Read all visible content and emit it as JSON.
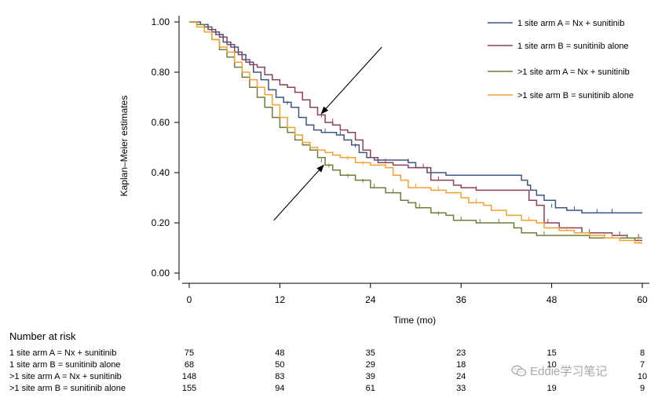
{
  "chart_data": {
    "type": "line",
    "step": true,
    "xlabel": "Time (mo)",
    "ylabel": "Kaplan–Meier estimates",
    "xlim": [
      0,
      60
    ],
    "ylim": [
      0,
      1.05
    ],
    "xticks": [
      0,
      12,
      24,
      36,
      48,
      60
    ],
    "yticks": [
      0.0,
      0.2,
      0.4,
      0.6,
      0.8,
      1.0
    ],
    "xtick_labels": [
      "0",
      "12",
      "24",
      "36",
      "48",
      "60"
    ],
    "ytick_labels": [
      "0.00",
      "0.20",
      "0.40",
      "0.60",
      "0.80",
      "1.00"
    ],
    "legend_position": "top-right",
    "series": [
      {
        "name": "1 site arm A = Nx + sunitinib",
        "color": "#3d5583",
        "points": [
          [
            0,
            1.0
          ],
          [
            1.5,
            0.99
          ],
          [
            2.5,
            0.97
          ],
          [
            3.5,
            0.95
          ],
          [
            4.5,
            0.92
          ],
          [
            5.5,
            0.9
          ],
          [
            6.5,
            0.87
          ],
          [
            7.5,
            0.84
          ],
          [
            8.5,
            0.8
          ],
          [
            9.5,
            0.77
          ],
          [
            10.5,
            0.73
          ],
          [
            11.5,
            0.7
          ],
          [
            12.5,
            0.68
          ],
          [
            13.5,
            0.66
          ],
          [
            14.5,
            0.62
          ],
          [
            15.5,
            0.59
          ],
          [
            16.5,
            0.57
          ],
          [
            17.5,
            0.56
          ],
          [
            18.5,
            0.56
          ],
          [
            19.5,
            0.55
          ],
          [
            20.5,
            0.53
          ],
          [
            21.5,
            0.51
          ],
          [
            22.5,
            0.48
          ],
          [
            23.5,
            0.46
          ],
          [
            24.5,
            0.45
          ],
          [
            27,
            0.45
          ],
          [
            29,
            0.44
          ],
          [
            30,
            0.42
          ],
          [
            31.5,
            0.4
          ],
          [
            34,
            0.39
          ],
          [
            43.5,
            0.39
          ],
          [
            44,
            0.37
          ],
          [
            44.8,
            0.35
          ],
          [
            45.2,
            0.33
          ],
          [
            46,
            0.31
          ],
          [
            47,
            0.29
          ],
          [
            48.5,
            0.26
          ],
          [
            50,
            0.25
          ],
          [
            52,
            0.24
          ],
          [
            60,
            0.24
          ]
        ],
        "censored": [
          [
            13,
            0.67
          ],
          [
            18,
            0.56
          ],
          [
            20,
            0.55
          ],
          [
            22,
            0.5
          ],
          [
            29,
            0.44
          ],
          [
            32,
            0.4
          ],
          [
            48,
            0.26
          ],
          [
            51,
            0.25
          ],
          [
            54,
            0.24
          ],
          [
            56,
            0.24
          ]
        ]
      },
      {
        "name": "1 site arm B = sunitinib alone",
        "color": "#8c4256",
        "points": [
          [
            0,
            1.0
          ],
          [
            1,
            0.99
          ],
          [
            2,
            0.98
          ],
          [
            3,
            0.96
          ],
          [
            4,
            0.94
          ],
          [
            5,
            0.91
          ],
          [
            6,
            0.88
          ],
          [
            7,
            0.85
          ],
          [
            8,
            0.83
          ],
          [
            9,
            0.82
          ],
          [
            10,
            0.79
          ],
          [
            11,
            0.77
          ],
          [
            12,
            0.75
          ],
          [
            13,
            0.74
          ],
          [
            14,
            0.72
          ],
          [
            15,
            0.69
          ],
          [
            16,
            0.66
          ],
          [
            17,
            0.63
          ],
          [
            18,
            0.6
          ],
          [
            19,
            0.59
          ],
          [
            20,
            0.57
          ],
          [
            21,
            0.56
          ],
          [
            22,
            0.53
          ],
          [
            23,
            0.49
          ],
          [
            24,
            0.46
          ],
          [
            25,
            0.44
          ],
          [
            27,
            0.43
          ],
          [
            29,
            0.42
          ],
          [
            32,
            0.37
          ],
          [
            34,
            0.37
          ],
          [
            35,
            0.35
          ],
          [
            36,
            0.34
          ],
          [
            37,
            0.34
          ],
          [
            38,
            0.33
          ],
          [
            43,
            0.33
          ],
          [
            45,
            0.29
          ],
          [
            46,
            0.27
          ],
          [
            47,
            0.2
          ],
          [
            49,
            0.18
          ],
          [
            52,
            0.16
          ],
          [
            56,
            0.15
          ],
          [
            58,
            0.14
          ],
          [
            59,
            0.13
          ],
          [
            60,
            0.13
          ]
        ],
        "censored": [
          [
            14,
            0.72
          ],
          [
            17.5,
            0.62
          ],
          [
            19,
            0.6
          ],
          [
            24,
            0.46
          ],
          [
            26,
            0.44
          ],
          [
            31,
            0.42
          ],
          [
            33,
            0.37
          ],
          [
            38,
            0.33
          ],
          [
            47.5,
            0.2
          ],
          [
            53,
            0.16
          ],
          [
            57,
            0.15
          ],
          [
            59.5,
            0.14
          ]
        ]
      },
      {
        "name": ">1 site arm A = Nx + sunitinib",
        "color": "#6b7f3a",
        "points": [
          [
            0,
            1.0
          ],
          [
            1,
            0.99
          ],
          [
            2,
            0.96
          ],
          [
            3,
            0.93
          ],
          [
            4,
            0.89
          ],
          [
            5,
            0.86
          ],
          [
            6,
            0.82
          ],
          [
            7,
            0.78
          ],
          [
            8,
            0.74
          ],
          [
            9,
            0.7
          ],
          [
            10,
            0.66
          ],
          [
            11,
            0.62
          ],
          [
            12,
            0.58
          ],
          [
            13,
            0.56
          ],
          [
            14,
            0.53
          ],
          [
            15,
            0.51
          ],
          [
            16,
            0.49
          ],
          [
            17,
            0.46
          ],
          [
            18,
            0.43
          ],
          [
            19,
            0.41
          ],
          [
            20,
            0.39
          ],
          [
            22,
            0.37
          ],
          [
            24,
            0.34
          ],
          [
            26,
            0.32
          ],
          [
            28,
            0.29
          ],
          [
            29,
            0.28
          ],
          [
            30,
            0.26
          ],
          [
            32,
            0.24
          ],
          [
            34,
            0.23
          ],
          [
            35,
            0.21
          ],
          [
            38,
            0.2
          ],
          [
            42,
            0.2
          ],
          [
            43,
            0.18
          ],
          [
            44,
            0.16
          ],
          [
            46,
            0.15
          ],
          [
            52,
            0.15
          ],
          [
            53,
            0.14
          ],
          [
            60,
            0.14
          ]
        ],
        "censored": [
          [
            17.5,
            0.44
          ],
          [
            18.5,
            0.42
          ],
          [
            20,
            0.39
          ],
          [
            21,
            0.38
          ],
          [
            22,
            0.37
          ],
          [
            23,
            0.36
          ],
          [
            24.5,
            0.34
          ],
          [
            27,
            0.32
          ],
          [
            30.5,
            0.26
          ],
          [
            33,
            0.23
          ],
          [
            36,
            0.21
          ],
          [
            38.5,
            0.2
          ],
          [
            41,
            0.2
          ],
          [
            47,
            0.15
          ],
          [
            55,
            0.14
          ],
          [
            58,
            0.14
          ]
        ]
      },
      {
        "name": ">1 site arm B = sunitinib alone",
        "color": "#f0a131",
        "points": [
          [
            0,
            1.0
          ],
          [
            1,
            0.98
          ],
          [
            2,
            0.96
          ],
          [
            3,
            0.93
          ],
          [
            4,
            0.9
          ],
          [
            5,
            0.88
          ],
          [
            6,
            0.84
          ],
          [
            7,
            0.8
          ],
          [
            8,
            0.77
          ],
          [
            9,
            0.74
          ],
          [
            10,
            0.71
          ],
          [
            11,
            0.67
          ],
          [
            12,
            0.62
          ],
          [
            13,
            0.58
          ],
          [
            14,
            0.55
          ],
          [
            15,
            0.52
          ],
          [
            16,
            0.5
          ],
          [
            17,
            0.49
          ],
          [
            18,
            0.48
          ],
          [
            19,
            0.47
          ],
          [
            20,
            0.46
          ],
          [
            22,
            0.44
          ],
          [
            24,
            0.43
          ],
          [
            26,
            0.42
          ],
          [
            27,
            0.39
          ],
          [
            28,
            0.37
          ],
          [
            29,
            0.34
          ],
          [
            31,
            0.34
          ],
          [
            32,
            0.33
          ],
          [
            34,
            0.32
          ],
          [
            36,
            0.3
          ],
          [
            37,
            0.28
          ],
          [
            39,
            0.27
          ],
          [
            40,
            0.25
          ],
          [
            42,
            0.23
          ],
          [
            44,
            0.21
          ],
          [
            46,
            0.2
          ],
          [
            47,
            0.18
          ],
          [
            49,
            0.17
          ],
          [
            51,
            0.16
          ],
          [
            53,
            0.15
          ],
          [
            55,
            0.14
          ],
          [
            57,
            0.13
          ],
          [
            59,
            0.12
          ],
          [
            60,
            0.12
          ]
        ],
        "censored": [
          [
            16,
            0.5
          ],
          [
            19,
            0.47
          ],
          [
            21,
            0.45
          ],
          [
            23,
            0.43
          ],
          [
            26,
            0.42
          ],
          [
            30,
            0.34
          ],
          [
            33,
            0.33
          ],
          [
            38,
            0.28
          ],
          [
            45,
            0.21
          ],
          [
            50,
            0.17
          ],
          [
            56,
            0.14
          ],
          [
            59.5,
            0.12
          ]
        ]
      }
    ],
    "annotations": [
      {
        "type": "arrow",
        "from": [
          25.5,
          0.9
        ],
        "to": [
          17.5,
          0.635
        ]
      },
      {
        "type": "arrow",
        "from": [
          11.2,
          0.21
        ],
        "to": [
          17.8,
          0.43
        ]
      }
    ],
    "risk_table": {
      "title": "Number at risk",
      "times": [
        0,
        12,
        24,
        36,
        48,
        60
      ],
      "rows": [
        {
          "label": "1 site arm A = Nx + sunitinib",
          "values": [
            "75",
            "48",
            "35",
            "23",
            "15",
            "8"
          ]
        },
        {
          "label": "1 site arm B = sunitinib alone",
          "values": [
            "68",
            "50",
            "29",
            "18",
            "10",
            "7"
          ]
        },
        {
          "label": ">1 site arm A = Nx + sunitinib",
          "values": [
            "148",
            "83",
            "39",
            "24",
            "",
            "10"
          ]
        },
        {
          "label": ">1 site arm B = sunitinib alone",
          "values": [
            "155",
            "94",
            "61",
            "33",
            "19",
            "9"
          ]
        }
      ]
    }
  },
  "watermark": {
    "text": "Eddie学习笔记",
    "icon": "wechat-icon"
  }
}
